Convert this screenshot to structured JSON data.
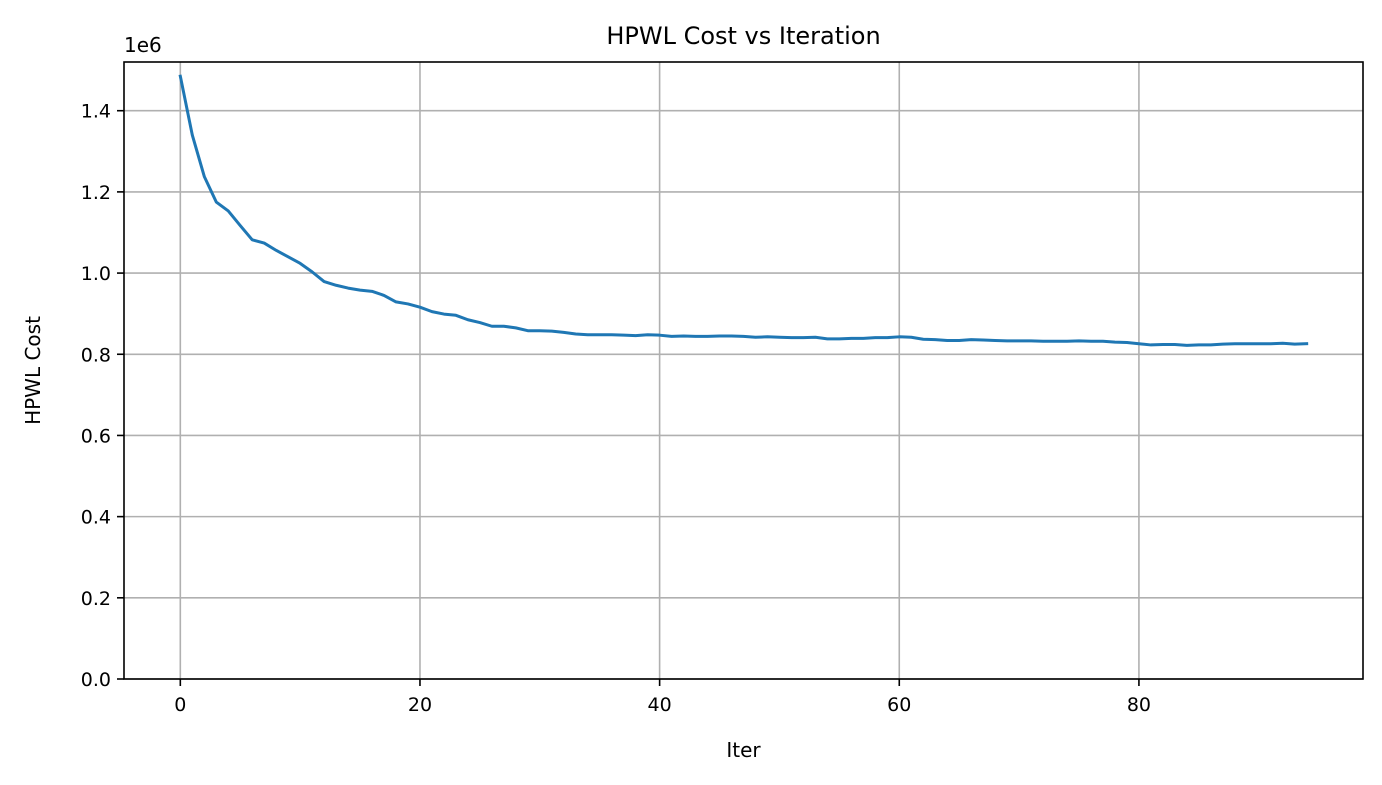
{
  "chart_data": {
    "type": "line",
    "title": "HPWL Cost vs Iteration",
    "xlabel": "Iter",
    "ylabel": "HPWL Cost",
    "y_offset_label": "1e6",
    "xlim": [
      -4.7,
      98.7
    ],
    "ylim": [
      0,
      1.52
    ],
    "xticks": [
      0,
      20,
      40,
      60,
      80
    ],
    "xtick_labels": [
      "0",
      "20",
      "40",
      "60",
      "80"
    ],
    "yticks": [
      0.0,
      0.2,
      0.4,
      0.6,
      0.8,
      1.0,
      1.2,
      1.4
    ],
    "ytick_labels": [
      "0.0",
      "0.2",
      "0.4",
      "0.6",
      "0.8",
      "1.0",
      "1.2",
      "1.4"
    ],
    "grid": true,
    "line_color": "#1f77b4",
    "grid_color": "#b0b0b0",
    "series": [
      {
        "x": [
          0,
          1,
          2,
          3,
          4,
          5,
          6,
          7,
          8,
          9,
          10,
          11,
          12,
          13,
          14,
          15,
          16,
          17,
          18,
          19,
          20,
          21,
          22,
          23,
          24,
          25,
          26,
          27,
          28,
          29,
          30,
          31,
          32,
          33,
          34,
          35,
          36,
          37,
          38,
          39,
          40,
          41,
          42,
          43,
          44,
          45,
          46,
          47,
          48,
          49,
          50,
          51,
          52,
          53,
          54,
          55,
          56,
          57,
          58,
          59,
          60,
          61,
          62,
          63,
          64,
          65,
          66,
          67,
          68,
          69,
          70,
          71,
          72,
          73,
          74,
          75,
          76,
          77,
          78,
          79,
          80,
          81,
          82,
          83,
          84,
          85,
          86,
          87,
          88,
          89,
          90,
          91,
          92,
          93,
          94
        ],
        "values": [
          1.485,
          1.34,
          1.238,
          1.175,
          1.153,
          1.117,
          1.082,
          1.074,
          1.056,
          1.04,
          1.024,
          1.003,
          0.979,
          0.97,
          0.963,
          0.958,
          0.955,
          0.945,
          0.929,
          0.924,
          0.916,
          0.905,
          0.899,
          0.896,
          0.885,
          0.878,
          0.869,
          0.869,
          0.865,
          0.858,
          0.858,
          0.857,
          0.854,
          0.85,
          0.848,
          0.848,
          0.848,
          0.847,
          0.846,
          0.848,
          0.847,
          0.844,
          0.845,
          0.844,
          0.844,
          0.845,
          0.845,
          0.844,
          0.842,
          0.843,
          0.842,
          0.841,
          0.841,
          0.842,
          0.838,
          0.838,
          0.839,
          0.839,
          0.841,
          0.841,
          0.843,
          0.842,
          0.837,
          0.836,
          0.834,
          0.834,
          0.836,
          0.835,
          0.834,
          0.833,
          0.833,
          0.833,
          0.832,
          0.832,
          0.832,
          0.833,
          0.832,
          0.832,
          0.83,
          0.829,
          0.826,
          0.823,
          0.824,
          0.824,
          0.822,
          0.823,
          0.823,
          0.825,
          0.826,
          0.826,
          0.826,
          0.826,
          0.827,
          0.825,
          0.826
        ]
      }
    ]
  }
}
